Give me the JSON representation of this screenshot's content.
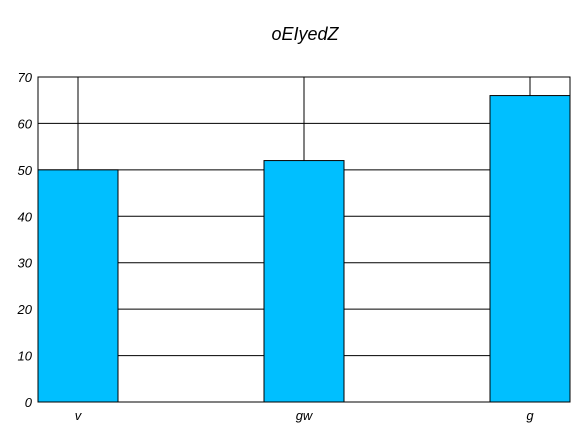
{
  "chart_data": {
    "type": "bar",
    "title": "oEIyedZ",
    "xlabel": "",
    "ylabel": "",
    "categories": [
      "v",
      "gw",
      "g"
    ],
    "values": [
      50,
      52,
      66
    ],
    "ylim": [
      0,
      70
    ],
    "yticks": [
      0,
      10,
      20,
      30,
      40,
      50,
      60,
      70
    ],
    "grid": true,
    "bar_color": "#00bfff",
    "edge_color": "#000000"
  }
}
